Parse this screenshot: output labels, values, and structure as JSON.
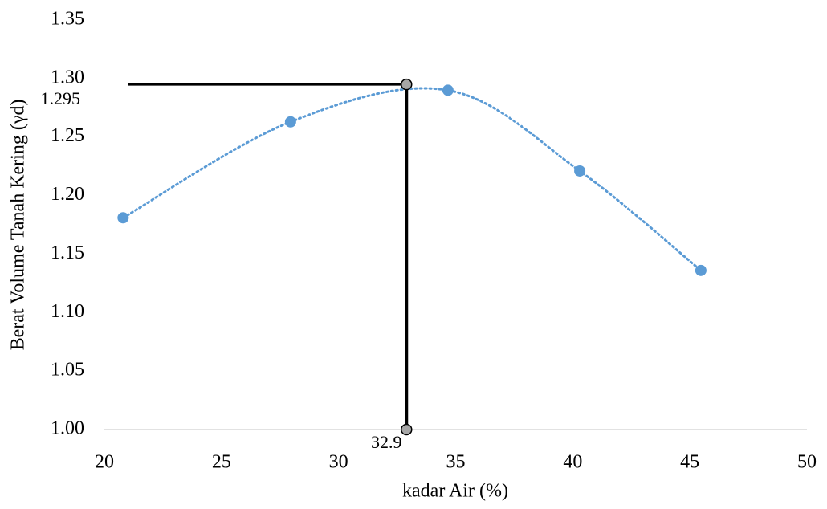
{
  "chart_data": {
    "type": "scatter",
    "x_label": "kadar Air (%)",
    "y_label": "Berat Volume Tanah Kering (γd)",
    "x": [
      20.8,
      27.95,
      34.67,
      40.3,
      45.47
    ],
    "series": [
      {
        "color": "#5b9bd5",
        "values": [
          1.181,
          1.263,
          1.29,
          1.221,
          1.136
        ]
      }
    ],
    "smooth_line": true,
    "xlim": [
      20,
      50
    ],
    "xticks": [
      20,
      25,
      30,
      35,
      40,
      45,
      50
    ],
    "ylim": [
      1.0,
      1.35
    ],
    "yticks": [
      {
        "value": 1.0,
        "label": "1.00"
      },
      1.05,
      {
        "value": 1.1,
        "label": "1.10"
      },
      1.15,
      {
        "value": 1.2,
        "label": "1.20"
      },
      1.25,
      {
        "value": 1.3,
        "label": "1.30"
      },
      1.35
    ],
    "annotation": {
      "x": 32.9,
      "y": 1.295,
      "color": "#000000"
    }
  }
}
